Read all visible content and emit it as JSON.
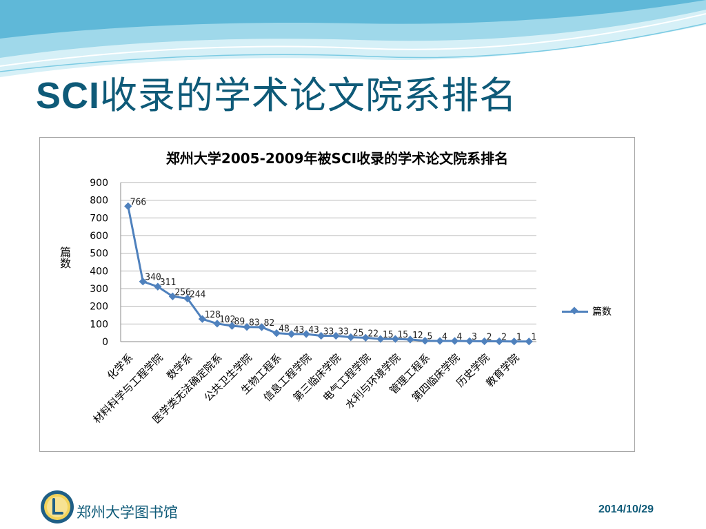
{
  "slide": {
    "title_latin": "SCI",
    "title_rest": "收录的学术论文院系排名"
  },
  "footer": {
    "library_name": "郑州大学图书馆",
    "date": "2014/10/29",
    "logo_icon": "library-logo-icon"
  },
  "colors": {
    "title": "#0e5a78",
    "series": "#4f81bd",
    "decor_light": "#b6e3f0",
    "decor_mid": "#5fb8d8"
  },
  "chart_data": {
    "type": "line",
    "title": "郑州大学2005-2009年被SCI收录的学术论文院系排名",
    "xlabel": "",
    "ylabel": "篇数",
    "ylim": [
      0,
      900
    ],
    "yticks": [
      0,
      100,
      200,
      300,
      400,
      500,
      600,
      700,
      800,
      900
    ],
    "grid": true,
    "legend": "right",
    "categories_labeled": [
      "化学系",
      "材料科学与工程学院",
      "数学系",
      "医学类无法确定院系",
      "公共卫生学院",
      "生物工程系",
      "信息工程学院",
      "第三临床学院",
      "电气工程学院",
      "水利与环境学院",
      "管理工程系",
      "第四临床学院",
      "历史学院",
      "教育学院"
    ],
    "label_every": 2,
    "series": [
      {
        "name": "篇数",
        "values": [
          766,
          340,
          311,
          256,
          244,
          128,
          102,
          89,
          83,
          82,
          48,
          43,
          43,
          33,
          33,
          25,
          22,
          15,
          15,
          12,
          5,
          4,
          4,
          3,
          2,
          2,
          1,
          1
        ],
        "data_labels": [
          "766",
          "340",
          "311",
          "256",
          "244",
          "128",
          "102",
          "89",
          "83",
          "82",
          "48",
          "43",
          "43",
          "33",
          "33",
          "25",
          "22",
          "15",
          "15",
          "12",
          "5",
          "4",
          "4",
          "3",
          "2",
          "2",
          "1",
          "1"
        ]
      }
    ]
  }
}
